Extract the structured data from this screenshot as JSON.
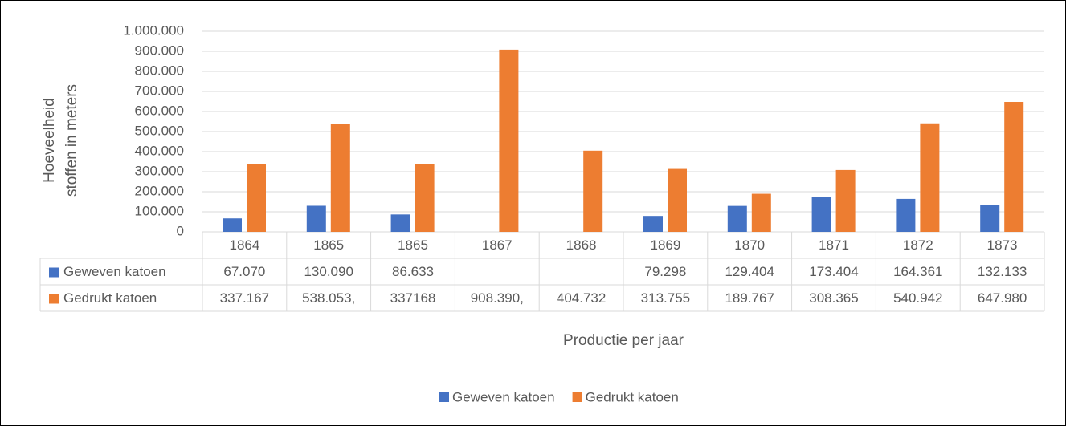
{
  "chart_data": {
    "type": "bar",
    "y_label": [
      "Hoeveelheid",
      "stoffen in meters"
    ],
    "x_label": "Productie per jaar",
    "categories": [
      "1864",
      "1865",
      "1865",
      "1867",
      "1868",
      "1869",
      "1870",
      "1871",
      "1872",
      "1873"
    ],
    "series": [
      {
        "name": "Geweven katoen",
        "color": "#4472c4",
        "values": [
          67070,
          130090,
          86633,
          null,
          null,
          79298,
          129404,
          173404,
          164361,
          132133
        ],
        "value_labels": [
          "67.070",
          "130.090",
          "86.633",
          null,
          null,
          "79.298",
          "129.404",
          "173.404",
          "164.361",
          "132.133"
        ]
      },
      {
        "name": "Gedrukt katoen",
        "color": "#ed7d31",
        "values": [
          337167,
          538053,
          337168,
          908390,
          404732,
          313755,
          189767,
          308365,
          540942,
          647980
        ],
        "value_labels": [
          "337.167",
          "538.053,",
          "337168",
          "908.390,",
          "404.732",
          "313.755",
          "189.767",
          "308.365",
          "540.942",
          "647.980"
        ]
      }
    ],
    "ylim": [
      0,
      1000000
    ],
    "yticks": [
      0,
      {
        "value": 100000,
        "label": "100.000"
      },
      {
        "value": 200000,
        "label": "200.000"
      },
      {
        "value": 300000,
        "label": "300.000"
      },
      {
        "value": 400000,
        "label": "400.000"
      },
      {
        "value": 500000,
        "label": "500.000"
      },
      {
        "value": 600000,
        "label": "600.000"
      },
      {
        "value": 700000,
        "label": "700.000"
      },
      {
        "value": 800000,
        "label": "800.000"
      },
      {
        "value": 900000,
        "label": "900.000"
      },
      {
        "value": 1000000,
        "label": "1.000.000"
      }
    ],
    "grid": true,
    "legend": "bottom"
  }
}
